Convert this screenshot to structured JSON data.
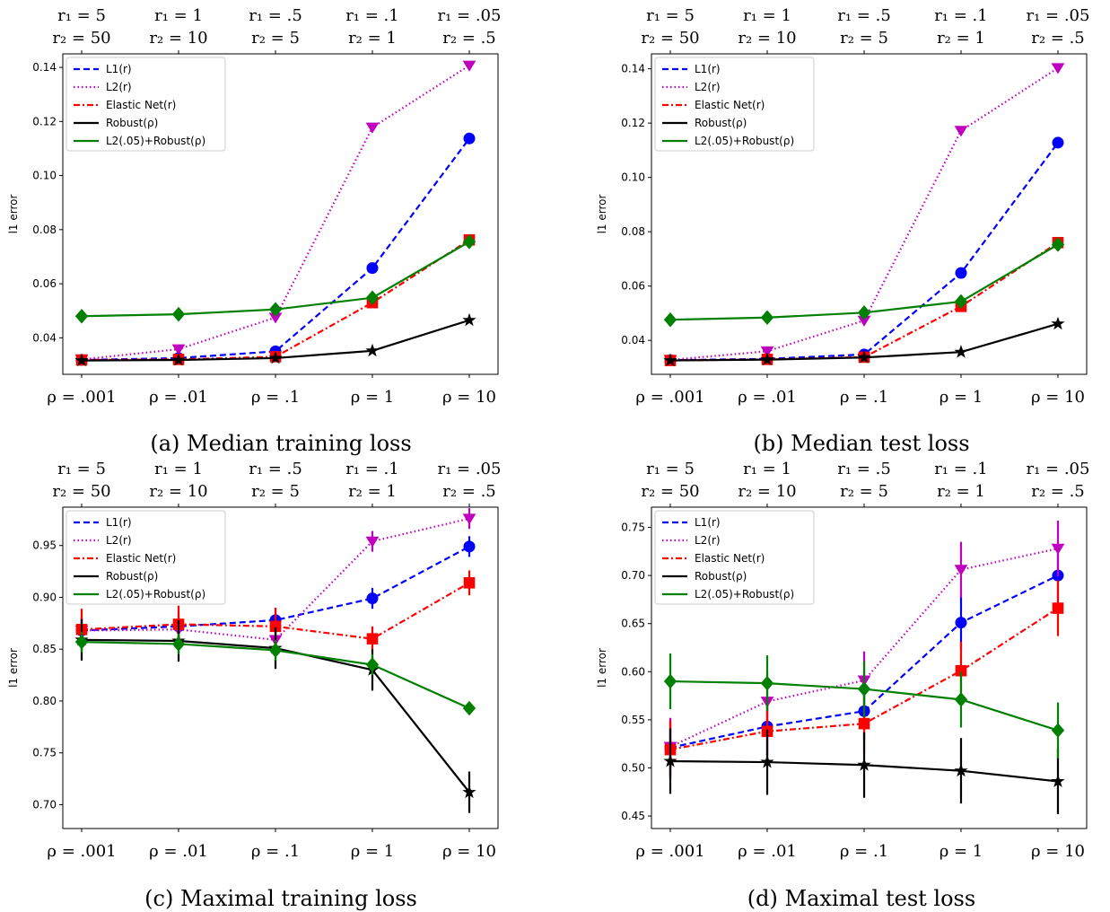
{
  "chart_data": [
    {
      "type": "line",
      "caption": "(a) Median training loss",
      "ylabel": "l1 error",
      "x_tick_labels": [
        "ρ = .001",
        "ρ = .01",
        "ρ = .1",
        "ρ = 1",
        "ρ = 10"
      ],
      "top_tick_labels_r1": [
        "r₁ = 5",
        "r₁ = 1",
        "r₁ = .5",
        "r₁ = .1",
        "r₁ = .05"
      ],
      "top_tick_labels_r2": [
        "r₂ = 50",
        "r₂ = 10",
        "r₂ = 5",
        "r₂ = 1",
        "r₂ = .5"
      ],
      "ylim": [
        0.0265,
        0.145
      ],
      "yticks": [
        0.04,
        0.06,
        0.08,
        0.1,
        0.12,
        0.14
      ],
      "ytick_labels": [
        "0.04",
        "0.06",
        "0.08",
        "0.10",
        "0.12",
        "0.14"
      ],
      "legend": "top-left",
      "series": [
        {
          "name": "L1(r)",
          "color": "#0000ff",
          "dash": "7,4",
          "marker": "circle",
          "values": [
            0.0318,
            0.0325,
            0.035,
            0.0658,
            0.1137
          ]
        },
        {
          "name": "L2(r)",
          "color": "#bf00bf",
          "dash": "1.5,3",
          "marker": "triangle-down",
          "values": [
            0.032,
            0.0358,
            0.0475,
            0.1178,
            0.1407
          ]
        },
        {
          "name": "Elastic Net(r)",
          "color": "#ff0000",
          "dash": "7,3,2,3",
          "marker": "square",
          "values": [
            0.0318,
            0.032,
            0.033,
            0.053,
            0.0762
          ]
        },
        {
          "name": "Robust(ρ)",
          "color": "#000000",
          "dash": "",
          "marker": "star",
          "values": [
            0.0316,
            0.0318,
            0.0325,
            0.0352,
            0.0465
          ]
        },
        {
          "name": "L2(.05)+Robust(ρ)",
          "color": "#008000",
          "dash": "",
          "marker": "diamond",
          "values": [
            0.048,
            0.0487,
            0.0505,
            0.0548,
            0.0755
          ]
        }
      ]
    },
    {
      "type": "line",
      "caption": "(b) Median test loss",
      "ylabel": "l1 error",
      "x_tick_labels": [
        "ρ = .001",
        "ρ = .01",
        "ρ = .1",
        "ρ = 1",
        "ρ = 10"
      ],
      "top_tick_labels_r1": [
        "r₁ = 5",
        "r₁ = 1",
        "r₁ = .5",
        "r₁ = .1",
        "r₁ = .05"
      ],
      "top_tick_labels_r2": [
        "r₂ = 50",
        "r₂ = 10",
        "r₂ = 5",
        "r₂ = 1",
        "r₂ = .5"
      ],
      "ylim": [
        0.0275,
        0.1455
      ],
      "yticks": [
        0.04,
        0.06,
        0.08,
        0.1,
        0.12,
        0.14
      ],
      "ytick_labels": [
        "0.04",
        "0.06",
        "0.08",
        "0.10",
        "0.12",
        "0.14"
      ],
      "legend": "top-left",
      "series": [
        {
          "name": "L1(r)",
          "color": "#0000ff",
          "dash": "7,4",
          "marker": "circle",
          "values": [
            0.0327,
            0.0332,
            0.0348,
            0.0648,
            0.1128
          ]
        },
        {
          "name": "L2(r)",
          "color": "#bf00bf",
          "dash": "1.5,3",
          "marker": "triangle-down",
          "values": [
            0.0328,
            0.036,
            0.0473,
            0.1172,
            0.1403
          ]
        },
        {
          "name": "Elastic Net(r)",
          "color": "#ff0000",
          "dash": "7,3,2,3",
          "marker": "square",
          "values": [
            0.0326,
            0.033,
            0.0338,
            0.0525,
            0.076
          ]
        },
        {
          "name": "Robust(ρ)",
          "color": "#000000",
          "dash": "",
          "marker": "star",
          "values": [
            0.0326,
            0.0329,
            0.0337,
            0.0357,
            0.0461
          ]
        },
        {
          "name": "L2(.05)+Robust(ρ)",
          "color": "#008000",
          "dash": "",
          "marker": "diamond",
          "values": [
            0.0476,
            0.0484,
            0.0502,
            0.0543,
            0.0753
          ]
        }
      ]
    },
    {
      "type": "line",
      "caption": "(c) Maximal training loss",
      "ylabel": "l1 error",
      "x_tick_labels": [
        "ρ = .001",
        "ρ = .01",
        "ρ = .1",
        "ρ = 1",
        "ρ = 10"
      ],
      "top_tick_labels_r1": [
        "r₁ = 5",
        "r₁ = 1",
        "r₁ = .5",
        "r₁ = .1",
        "r₁ = .05"
      ],
      "top_tick_labels_r2": [
        "r₂ = 50",
        "r₂ = 10",
        "r₂ = 5",
        "r₂ = 1",
        "r₂ = .5"
      ],
      "ylim": [
        0.677,
        0.987
      ],
      "yticks": [
        0.7,
        0.75,
        0.8,
        0.85,
        0.9,
        0.95
      ],
      "ytick_labels": [
        "0.70",
        "0.75",
        "0.80",
        "0.85",
        "0.90",
        "0.95"
      ],
      "legend": "top-left",
      "series": [
        {
          "name": "L1(r)",
          "color": "#0000ff",
          "dash": "7,4",
          "marker": "circle",
          "values": [
            0.868,
            0.872,
            0.878,
            0.899,
            0.949
          ],
          "err": [
            0.012,
            0.012,
            0.012,
            0.01,
            0.01
          ]
        },
        {
          "name": "L2(r)",
          "color": "#bf00bf",
          "dash": "1.5,3",
          "marker": "triangle-down",
          "values": [
            0.868,
            0.869,
            0.859,
            0.954,
            0.976
          ],
          "err": [
            0.012,
            0.012,
            0.012,
            0.01,
            0.01
          ]
        },
        {
          "name": "Elastic Net(r)",
          "color": "#ff0000",
          "dash": "7,3,2,3",
          "marker": "square",
          "values": [
            0.869,
            0.874,
            0.872,
            0.86,
            0.914
          ],
          "err": [
            0.02,
            0.018,
            0.018,
            0.012,
            0.012
          ]
        },
        {
          "name": "Robust(ρ)",
          "color": "#000000",
          "dash": "",
          "marker": "star",
          "values": [
            0.859,
            0.858,
            0.851,
            0.83,
            0.712
          ],
          "err": [
            0.02,
            0.02,
            0.02,
            0.02,
            0.02
          ]
        },
        {
          "name": "L2(.05)+Robust(ρ)",
          "color": "#008000",
          "dash": "",
          "marker": "diamond",
          "values": [
            0.857,
            0.855,
            0.849,
            0.835,
            0.793
          ],
          "err": [
            0.01,
            0.01,
            0.01,
            0.01,
            0.005
          ]
        }
      ]
    },
    {
      "type": "line",
      "caption": "(d) Maximal test loss",
      "ylabel": "l1 error",
      "x_tick_labels": [
        "ρ = .001",
        "ρ = .01",
        "ρ = .1",
        "ρ = 1",
        "ρ = 10"
      ],
      "top_tick_labels_r1": [
        "r₁ = 5",
        "r₁ = 1",
        "r₁ = .5",
        "r₁ = .1",
        "r₁ = .05"
      ],
      "top_tick_labels_r2": [
        "r₂ = 50",
        "r₂ = 10",
        "r₂ = 5",
        "r₂ = 1",
        "r₂ = .5"
      ],
      "ylim": [
        0.437,
        0.771
      ],
      "yticks": [
        0.45,
        0.5,
        0.55,
        0.6,
        0.65,
        0.7,
        0.75
      ],
      "ytick_labels": [
        "0.45",
        "0.50",
        "0.55",
        "0.60",
        "0.65",
        "0.70",
        "0.75"
      ],
      "legend": "top-left",
      "series": [
        {
          "name": "L1(r)",
          "color": "#0000ff",
          "dash": "7,4",
          "marker": "circle",
          "values": [
            0.521,
            0.543,
            0.559,
            0.651,
            0.7
          ],
          "err": [
            0.03,
            0.03,
            0.03,
            0.028,
            0.028
          ]
        },
        {
          "name": "L2(r)",
          "color": "#bf00bf",
          "dash": "1.5,3",
          "marker": "triangle-down",
          "values": [
            0.522,
            0.569,
            0.591,
            0.706,
            0.728
          ],
          "err": [
            0.03,
            0.03,
            0.03,
            0.029,
            0.029
          ]
        },
        {
          "name": "Elastic Net(r)",
          "color": "#ff0000",
          "dash": "7,3,2,3",
          "marker": "square",
          "values": [
            0.519,
            0.538,
            0.546,
            0.601,
            0.666
          ],
          "err": [
            0.03,
            0.03,
            0.03,
            0.03,
            0.029
          ]
        },
        {
          "name": "Robust(ρ)",
          "color": "#000000",
          "dash": "",
          "marker": "star",
          "values": [
            0.507,
            0.506,
            0.503,
            0.497,
            0.486
          ],
          "err": [
            0.034,
            0.034,
            0.034,
            0.034,
            0.034
          ]
        },
        {
          "name": "L2(.05)+Robust(ρ)",
          "color": "#008000",
          "dash": "",
          "marker": "diamond",
          "values": [
            0.59,
            0.588,
            0.582,
            0.571,
            0.539
          ],
          "err": [
            0.029,
            0.029,
            0.029,
            0.029,
            0.029
          ]
        }
      ]
    }
  ]
}
